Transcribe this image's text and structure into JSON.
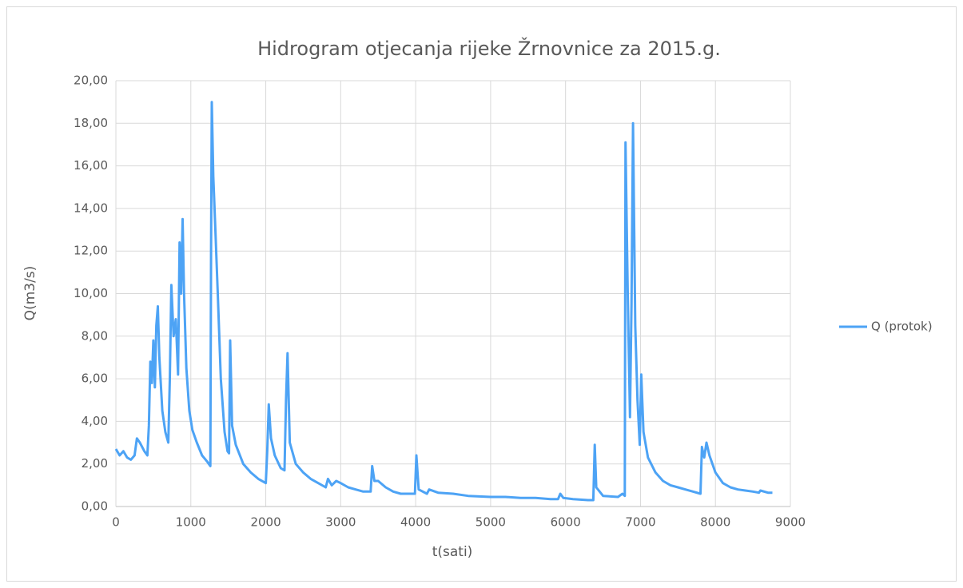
{
  "chart_data": {
    "type": "line",
    "title": "Hidrogram otjecanja rijeke Žrnovnice za 2015.g.",
    "x_label": "t(sati)",
    "y_label": "Q(m3/s)",
    "x": [
      0,
      50,
      100,
      150,
      200,
      250,
      280,
      320,
      380,
      420,
      440,
      460,
      480,
      500,
      520,
      540,
      560,
      580,
      620,
      660,
      700,
      720,
      740,
      770,
      800,
      830,
      850,
      870,
      890,
      910,
      940,
      980,
      1020,
      1080,
      1150,
      1220,
      1260,
      1270,
      1280,
      1300,
      1330,
      1360,
      1400,
      1450,
      1490,
      1510,
      1525,
      1550,
      1600,
      1700,
      1800,
      1900,
      2000,
      2020,
      2040,
      2070,
      2120,
      2200,
      2250,
      2270,
      2290,
      2320,
      2400,
      2500,
      2600,
      2700,
      2800,
      2830,
      2880,
      2940,
      3000,
      3100,
      3200,
      3300,
      3400,
      3420,
      3450,
      3500,
      3600,
      3700,
      3800,
      3900,
      3990,
      4010,
      4040,
      4150,
      4180,
      4300,
      4500,
      4700,
      5000,
      5200,
      5400,
      5600,
      5800,
      5900,
      5930,
      5970,
      6100,
      6300,
      6370,
      6390,
      6410,
      6500,
      6700,
      6760,
      6790,
      6800,
      6830,
      6860,
      6880,
      6900,
      6930,
      6960,
      6990,
      7010,
      7040,
      7100,
      7200,
      7300,
      7400,
      7500,
      7600,
      7700,
      7800,
      7820,
      7850,
      7880,
      7920,
      8000,
      8100,
      8200,
      8300,
      8400,
      8500,
      8580,
      8600,
      8700,
      8760
    ],
    "series": [
      {
        "name": "Q (protok)",
        "color": "#4da3f5",
        "values": [
          2.7,
          2.4,
          2.6,
          2.3,
          2.2,
          2.4,
          3.2,
          3.0,
          2.6,
          2.4,
          3.8,
          6.8,
          5.8,
          7.8,
          5.6,
          8.5,
          9.4,
          7.0,
          4.5,
          3.5,
          3.0,
          6.0,
          10.4,
          8.0,
          8.8,
          6.2,
          12.4,
          10.0,
          13.5,
          10.0,
          6.5,
          4.5,
          3.6,
          3.0,
          2.4,
          2.1,
          1.9,
          12.0,
          19.0,
          15.5,
          12.8,
          10.0,
          6.0,
          3.5,
          2.6,
          2.5,
          7.8,
          3.8,
          2.9,
          2.0,
          1.6,
          1.3,
          1.1,
          2.6,
          4.8,
          3.2,
          2.4,
          1.8,
          1.7,
          5.0,
          7.2,
          3.0,
          2.0,
          1.6,
          1.3,
          1.1,
          0.9,
          1.3,
          1.0,
          1.2,
          1.1,
          0.9,
          0.8,
          0.7,
          0.7,
          1.9,
          1.2,
          1.2,
          0.9,
          0.7,
          0.6,
          0.6,
          0.6,
          2.4,
          0.8,
          0.6,
          0.8,
          0.65,
          0.6,
          0.5,
          0.45,
          0.45,
          0.4,
          0.4,
          0.35,
          0.35,
          0.6,
          0.4,
          0.35,
          0.3,
          0.3,
          2.9,
          0.9,
          0.5,
          0.45,
          0.6,
          0.5,
          17.1,
          10.0,
          4.2,
          9.5,
          18.0,
          8.5,
          5.0,
          2.9,
          6.2,
          3.5,
          2.3,
          1.6,
          1.2,
          1.0,
          0.9,
          0.8,
          0.7,
          0.6,
          2.8,
          2.3,
          3.0,
          2.4,
          1.6,
          1.1,
          0.9,
          0.8,
          0.75,
          0.7,
          0.65,
          0.75,
          0.65,
          0.65
        ]
      }
    ],
    "xlim": [
      0,
      9000
    ],
    "xticks": [
      0,
      1000,
      2000,
      3000,
      4000,
      5000,
      6000,
      7000,
      8000,
      9000
    ],
    "ylim": [
      0,
      20
    ],
    "yticks": [
      {
        "value": 0,
        "label": "0,00"
      },
      {
        "value": 2,
        "label": "2,00"
      },
      {
        "value": 4,
        "label": "4,00"
      },
      {
        "value": 6,
        "label": "6,00"
      },
      {
        "value": 8,
        "label": "8,00"
      },
      {
        "value": 10,
        "label": "10,00"
      },
      {
        "value": 12,
        "label": "12,00"
      },
      {
        "value": 14,
        "label": "14,00"
      },
      {
        "value": 16,
        "label": "16,00"
      },
      {
        "value": 18,
        "label": "18,00"
      },
      {
        "value": 20,
        "label": "20,00"
      }
    ],
    "grid": true,
    "legend": "right"
  }
}
